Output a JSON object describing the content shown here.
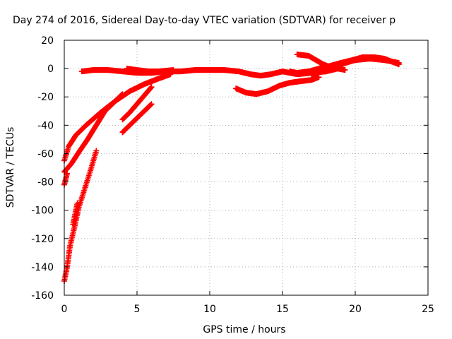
{
  "chart_data": {
    "type": "scatter",
    "title": "Day 274 of 2016, Sidereal Day-to-day VTEC variation (SDTVAR) for receiver p",
    "xlabel": "GPS time / hours",
    "ylabel": "SDTVAR / TECUs",
    "xlim": [
      0,
      25
    ],
    "ylim": [
      -160,
      20
    ],
    "xticks": [
      "0",
      "5",
      "10",
      "15",
      "20",
      "25"
    ],
    "yticks": [
      "20",
      "0",
      "-20",
      "-40",
      "-60",
      "-80",
      "-100",
      "-120",
      "-140",
      "-160"
    ],
    "grid": true,
    "marker": "+",
    "color": "#ff0000",
    "series": [
      {
        "x": [
          0.0,
          0.3,
          0.8,
          1.5,
          2.5,
          3.5,
          4.5,
          5.5,
          6.5,
          7.3
        ],
        "y": [
          -65,
          -55,
          -47,
          -40,
          -31,
          -23,
          -16,
          -11,
          -7,
          -4
        ]
      },
      {
        "x": [
          0.0,
          0.5,
          1.0,
          1.6,
          2.2,
          2.8,
          3.3,
          3.8,
          4.0
        ],
        "y": [
          -73,
          -67,
          -59,
          -50,
          -40,
          -30,
          -25,
          -20,
          -18
        ]
      },
      {
        "x": [
          0.0,
          0.2,
          0.4,
          0.7,
          1.0,
          1.4,
          1.8,
          2.2
        ],
        "y": [
          -150,
          -140,
          -125,
          -112,
          -98,
          -85,
          -72,
          -58
        ]
      },
      {
        "x": [
          0.0,
          0.1,
          0.2
        ],
        "y": [
          -82,
          -78,
          -74
        ]
      },
      {
        "x": [
          0.6,
          0.9
        ],
        "y": [
          -110,
          -95
        ]
      },
      {
        "x": [
          4.0,
          4.5,
          5.0,
          5.5,
          6.0
        ],
        "y": [
          -36,
          -31,
          -25,
          -19,
          -13
        ]
      },
      {
        "x": [
          4.0,
          4.5,
          5.0,
          5.6,
          6.0
        ],
        "y": [
          -45,
          -40,
          -35,
          -29,
          -25
        ]
      },
      {
        "x": [
          1.2,
          2.0,
          3.0,
          4.0,
          5.0,
          6.0,
          7.0,
          8.0,
          9.0,
          10.0,
          11.0,
          12.0,
          12.8,
          13.5,
          14.2,
          15.0,
          16.0,
          17.0,
          18.0,
          18.8
        ],
        "y": [
          -2,
          -1,
          -1,
          -2,
          -3,
          -3,
          -2,
          -2,
          -1,
          -1,
          -1,
          -2,
          -4,
          -5,
          -4,
          -2,
          -4,
          -3,
          -2,
          0
        ]
      },
      {
        "x": [
          4.3,
          5.0,
          5.8,
          6.5,
          7.5
        ],
        "y": [
          0,
          -1,
          -2,
          -2,
          -1
        ]
      },
      {
        "x": [
          11.8,
          12.5,
          13.2,
          14.0,
          14.8,
          15.5,
          16.2,
          17.0,
          17.5
        ],
        "y": [
          -14,
          -17,
          -18,
          -16,
          -12,
          -10,
          -9,
          -8,
          -6
        ]
      },
      {
        "x": [
          16.0,
          16.8,
          17.3,
          17.8,
          18.3,
          18.8,
          19.3
        ],
        "y": [
          10,
          9,
          6,
          3,
          1,
          0,
          -1
        ]
      },
      {
        "x": [
          15.5,
          16.0,
          16.8,
          17.5,
          18.3,
          19.0,
          19.8,
          20.5,
          21.3,
          22.0,
          22.5,
          23.0
        ],
        "y": [
          -2,
          -3,
          -2,
          0,
          2,
          4,
          6,
          8,
          8,
          7,
          5,
          3
        ]
      },
      {
        "x": [
          17.0,
          18.0,
          19.0,
          20.0,
          21.0,
          22.0,
          23.0
        ],
        "y": [
          -4,
          0,
          3,
          6,
          7,
          6,
          4
        ]
      }
    ]
  }
}
